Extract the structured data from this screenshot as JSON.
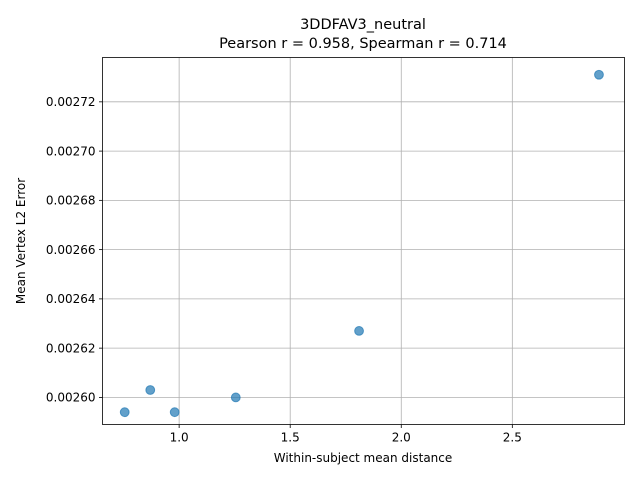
{
  "chart_data": {
    "type": "scatter",
    "title": "3DDFAV3_neutral",
    "subtitle": "Pearson r = 0.958, Spearman r = 0.714",
    "xlabel": "Within-subject mean distance",
    "ylabel": "Mean Vertex L2 Error",
    "xlim": [
      0.655,
      3.005
    ],
    "ylim": [
      0.002589,
      0.002738
    ],
    "xticks": [
      1.0,
      1.5,
      2.0,
      2.5
    ],
    "xtick_labels": [
      "1.0",
      "1.5",
      "2.0",
      "2.5"
    ],
    "yticks": [
      0.0026,
      0.00262,
      0.00264,
      0.00266,
      0.00268,
      0.0027,
      0.00272
    ],
    "ytick_labels": [
      "0.00260",
      "0.00262",
      "0.00264",
      "0.00266",
      "0.00268",
      "0.00270",
      "0.00272"
    ],
    "grid": true,
    "marker_color": "#1f77b4",
    "points": [
      {
        "x": 0.755,
        "y": 0.002594
      },
      {
        "x": 0.87,
        "y": 0.002603
      },
      {
        "x": 0.98,
        "y": 0.002594
      },
      {
        "x": 1.255,
        "y": 0.0026
      },
      {
        "x": 1.81,
        "y": 0.002627
      },
      {
        "x": 2.89,
        "y": 0.002731
      }
    ]
  }
}
